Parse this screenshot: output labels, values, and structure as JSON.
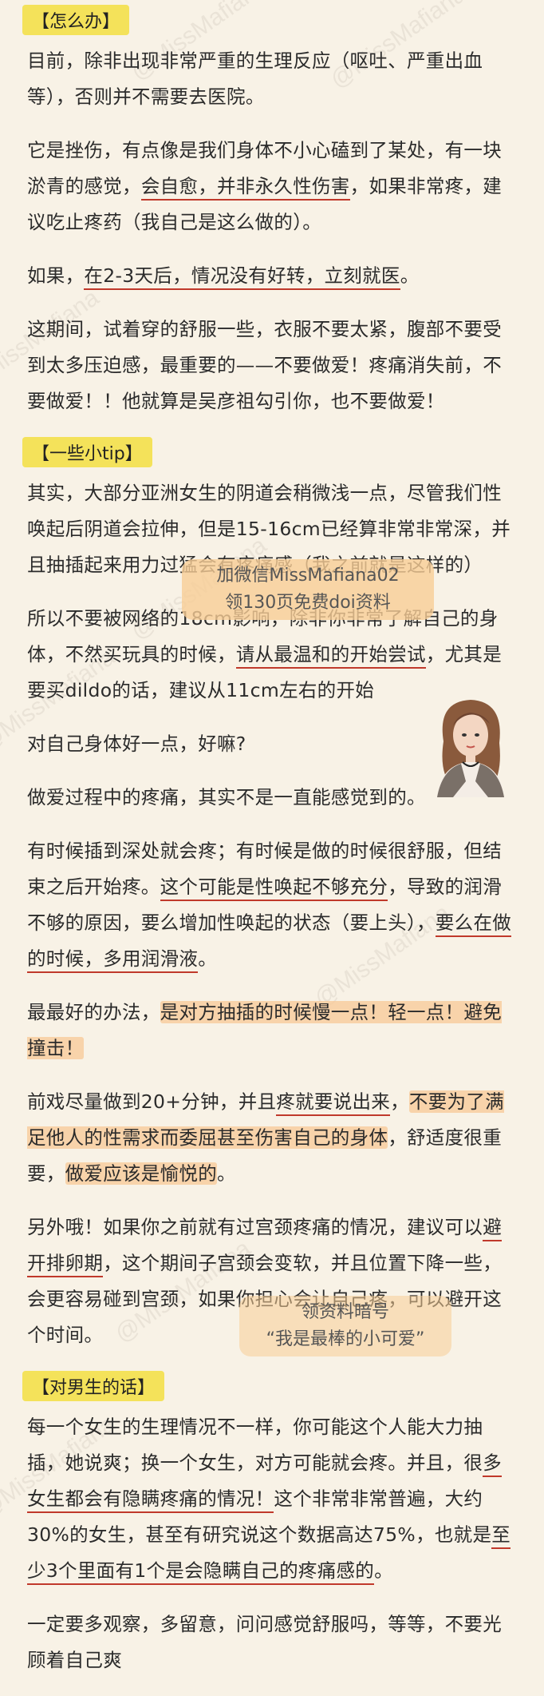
{
  "watermark": "@MissMafiana",
  "sections": {
    "s1_tag": "【怎么办】",
    "p1": "目前，除非出现非常严重的生理反应（呕吐、严重出血等），否则并不需要去医院。",
    "p2a": "它是挫伤，有点像是我们身体不小心磕到了某处，有一块淤青的感觉，",
    "p2b": "会自愈，并非永久性伤害",
    "p2c": "，如果非常疼，建议吃止疼药（我自己是这么做的）。",
    "p3a": "如果，",
    "p3b": "在2-3天后，情况没有好转，立刻就医",
    "p3c": "。",
    "p4": "这期间，试着穿的舒服一些，衣服不要太紧，腹部不要受到太多压迫感，最重要的——不要做爱！疼痛消失前，不要做爱！！他就算是吴彦祖勾引你，也不要做爱！",
    "s2_tag": "【一些小tip】",
    "p5": "其实，大部分亚洲女生的阴道会稍微浅一点，尽管我们性唤起后阴道会拉伸，但是15-16cm已经算非常非常深，并且抽插起来用力过猛会有疼痛感（我之前就是这样的）",
    "p6a": "所以不要被网络的18cm影响，除非你非常了解自己的身体，不然买玩具的时候，",
    "p6b": "请从最温和的开始尝试",
    "p6c": "，尤其是要买dildo的话，建议从11cm左右的开始",
    "p7": "对自己身体好一点，好嘛?",
    "p8": "做爱过程中的疼痛，其实不是一直能感觉到的。",
    "p9a": "有时候插到深处就会疼；有时候是做的时候很舒服，但结束之后开始疼。",
    "p9b": "这个可能是性唤起不够充分",
    "p9c": "，导致的润滑不够的原因，要么增加性唤起的状态（要上头），",
    "p9d": "要么在做的时候，多用润滑液",
    "p9e": "。",
    "p10a": "最最好的办法，",
    "p10b": "是对方抽插的时候慢一点！轻一点！避免撞击！",
    "p11a": "前戏尽量做到20+分钟，并且",
    "p11b": "疼就要说出来",
    "p11c": "，",
    "p11d": "不要为了满足他人的性需求而委屈甚至伤害自己的身体",
    "p11e": "，舒适度很重要，",
    "p11f": "做爱应该是愉悦的",
    "p11g": "。",
    "p12a": "另外哦！如果你之前就有过宫颈疼痛的情况，建议可以",
    "p12b": "避开排卵期",
    "p12c": "，这个期间子宫颈会变软，并且位置下降一些，会更容易碰到宫颈，如果你担心会让自己疼，可以避开这个时间。",
    "s3_tag": "【对男生的话】",
    "p13a": "每一个女生的生理情况不一样，你可能这个人能大力抽插，她说爽；换一个女生，对方可能就会疼。并且，很",
    "p13b": "多女生都会有隐瞒疼痛的情况！",
    "p13c": "这个非常非常普遍，大约30%的女生，甚至有研究说这个数据高达75%，也就是",
    "p13d": "至少3个里面有1个是会隐瞒自己的疼痛感的",
    "p13e": "。",
    "p14": "一定要多观察，多留意，问问感觉舒服吗，等等，不要光顾着自己爽"
  },
  "overlay1": {
    "line1": "加微信MissMafiana02",
    "line2": "领130页免费doi资料"
  },
  "overlay2": {
    "line1": "领资料暗号",
    "line2": "“我是最棒的小可爱”"
  },
  "colors": {
    "background": "#f8f2e6",
    "tag": "#f4e25a",
    "underline": "#c0392b",
    "highlight": "#f8c896"
  }
}
